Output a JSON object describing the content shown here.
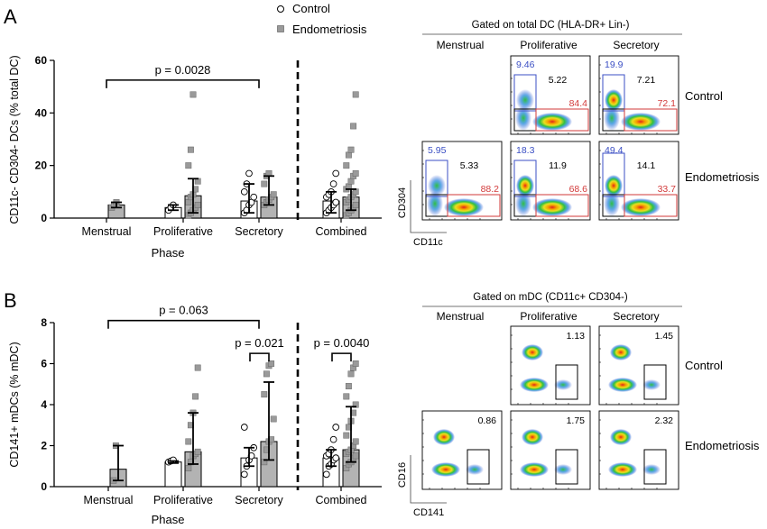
{
  "legend": {
    "control": "Control",
    "endo": "Endometriosis"
  },
  "colors": {
    "control_fill": "#ffffff",
    "endo_fill": "#b3b3b3",
    "endo_point": "#9a9a9a",
    "gate_blue": "#3b4fc4",
    "gate_red": "#d23a3a",
    "gate_black": "#000000"
  },
  "panelA": {
    "letter": "A",
    "chart_data": {
      "type": "bar",
      "ylabel": "CD11c- CD304- DCs (% total DC)",
      "xlabel": "Phase",
      "categories": [
        "Menstrual",
        "Proliferative",
        "Secretory",
        "Combined"
      ],
      "ylim": [
        0,
        60
      ],
      "yticks": [
        0,
        20,
        40,
        60
      ],
      "series": [
        {
          "name": "Control",
          "values": [
            null,
            4,
            6.5,
            6.5
          ],
          "err": [
            null,
            [
              3,
              5
            ],
            [
              2,
              13
            ],
            [
              2,
              10
            ]
          ],
          "points": [
            [],
            [
              3,
              4,
              5
            ],
            [
              2,
              3,
              5,
              6,
              8,
              10,
              13,
              17
            ],
            [
              2,
              3,
              4,
              5,
              6,
              8,
              9,
              10,
              13,
              17
            ]
          ]
        },
        {
          "name": "Endometriosis",
          "values": [
            5,
            8.5,
            8,
            8
          ],
          "err": [
            [
              4,
              6
            ],
            [
              2,
              15
            ],
            [
              5,
              16
            ],
            [
              3,
              11
            ]
          ],
          "points": [
            [
              4,
              5,
              6
            ],
            [
              1,
              2,
              3,
              4,
              5,
              6,
              8,
              9,
              11,
              14,
              20,
              26,
              47
            ],
            [
              5,
              6,
              7,
              8,
              9,
              13,
              16,
              17
            ],
            [
              1,
              2,
              3,
              4,
              5,
              6,
              7,
              8,
              9,
              10,
              11,
              12,
              14,
              16,
              17,
              20,
              24,
              26,
              35,
              47
            ]
          ]
        }
      ],
      "annotations": [
        {
          "text": "p = 0.0028",
          "from": 0,
          "to": 2,
          "y": 52.5
        }
      ]
    },
    "flow_title": "Gated on total DC (HLA-DR+ Lin-)",
    "cols": [
      "Menstrual",
      "Proliferative",
      "Secretory"
    ],
    "rows": [
      "Control",
      "Endometriosis"
    ],
    "xlabel": "CD11c",
    "ylabel": "CD304",
    "plots": [
      {
        "row": 0,
        "col": 1,
        "blue": "9.46",
        "black": "5.22",
        "red": "84.4"
      },
      {
        "row": 0,
        "col": 2,
        "blue": "19.9",
        "black": "7.21",
        "red": "72.1"
      },
      {
        "row": 1,
        "col": 0,
        "blue": "5.95",
        "black": "5.33",
        "red": "88.2"
      },
      {
        "row": 1,
        "col": 1,
        "blue": "18.3",
        "black": "11.9",
        "red": "68.6"
      },
      {
        "row": 1,
        "col": 2,
        "blue": "49.4",
        "black": "14.1",
        "red": "33.7"
      }
    ]
  },
  "panelB": {
    "letter": "B",
    "chart_data": {
      "type": "bar",
      "ylabel": "CD141+ mDCs (% mDC)",
      "xlabel": "Phase",
      "categories": [
        "Menstrual",
        "Proliferative",
        "Secretory",
        "Combined"
      ],
      "ylim": [
        0,
        8
      ],
      "yticks": [
        0,
        2,
        4,
        6,
        8
      ],
      "series": [
        {
          "name": "Control",
          "values": [
            null,
            1.2,
            1.4,
            1.4
          ],
          "err": [
            null,
            [
              1.15,
              1.25
            ],
            [
              1.0,
              1.9
            ],
            [
              1.0,
              1.8
            ]
          ],
          "points": [
            [],
            [
              1.2,
              1.25,
              1.3
            ],
            [
              0.6,
              1.0,
              1.3,
              1.5,
              1.9,
              2.9
            ],
            [
              0.6,
              1.0,
              1.1,
              1.3,
              1.4,
              1.5,
              1.6,
              1.8,
              2.3,
              2.9
            ]
          ]
        },
        {
          "name": "Endometriosis",
          "values": [
            0.85,
            1.7,
            2.2,
            1.8
          ],
          "err": [
            [
              0.3,
              2.0
            ],
            [
              1.1,
              3.6
            ],
            [
              1.3,
              5.1
            ],
            [
              1.2,
              3.9
            ]
          ],
          "points": [
            [
              0.3,
              2.0
            ],
            [
              0.9,
              1.2,
              1.5,
              1.6,
              1.7,
              2.2,
              3.0,
              3.6,
              4.4,
              5.8
            ],
            [
              1.2,
              1.8,
              2.2,
              2.3,
              3.3,
              4.5,
              5.5,
              5.9,
              6.0
            ],
            [
              0.9,
              1.1,
              1.2,
              1.4,
              1.5,
              1.6,
              1.7,
              1.8,
              2.0,
              2.2,
              2.5,
              2.9,
              3.2,
              3.6,
              4.0,
              4.4,
              4.9,
              5.5,
              5.8,
              6.0
            ]
          ]
        }
      ],
      "annotations": [
        {
          "text": "p = 0.063",
          "from": 0,
          "to": 2,
          "y": 8.1
        },
        {
          "text": "p = 0.021",
          "from": 2,
          "to": 2,
          "y": 6.5
        },
        {
          "text": "p = 0.0040",
          "from": 3,
          "to": 3,
          "y": 6.5
        }
      ]
    },
    "flow_title": "Gated on mDC (CD11c+ CD304-)",
    "cols": [
      "Menstrual",
      "Proliferative",
      "Secretory"
    ],
    "rows": [
      "Control",
      "Endometriosis"
    ],
    "xlabel": "CD141",
    "ylabel": "CD16",
    "plots": [
      {
        "row": 0,
        "col": 1,
        "value": "1.13"
      },
      {
        "row": 0,
        "col": 2,
        "value": "1.45"
      },
      {
        "row": 1,
        "col": 0,
        "value": "0.86"
      },
      {
        "row": 1,
        "col": 1,
        "value": "1.75"
      },
      {
        "row": 1,
        "col": 2,
        "value": "2.32"
      }
    ]
  }
}
